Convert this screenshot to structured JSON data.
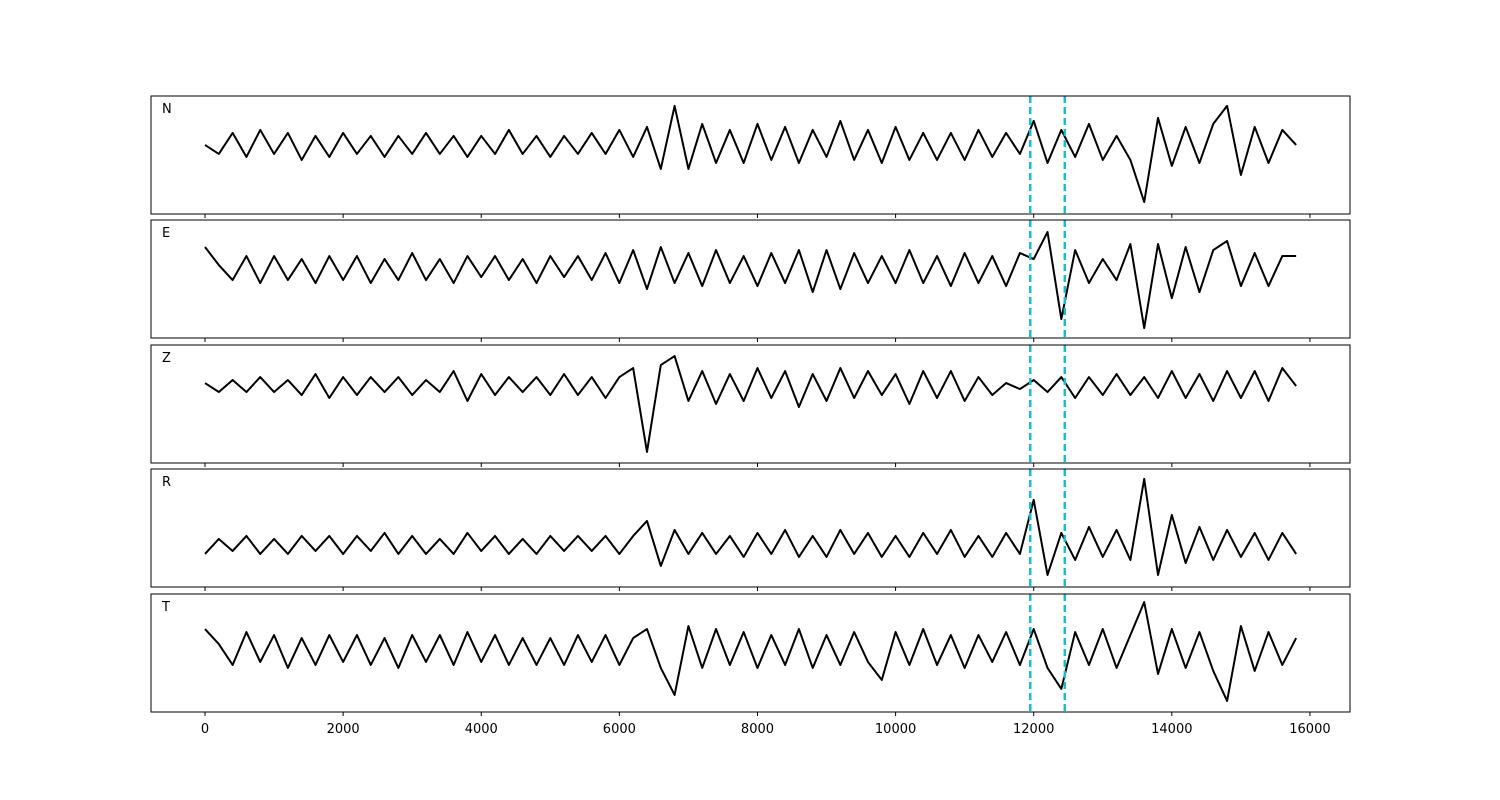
{
  "chart_data": {
    "type": "line",
    "x": [
      0,
      200,
      400,
      600,
      800,
      1000,
      1200,
      1400,
      1600,
      1800,
      2000,
      2200,
      2400,
      2600,
      2800,
      3000,
      3200,
      3400,
      3600,
      3800,
      4000,
      4200,
      4400,
      4600,
      4800,
      5000,
      5200,
      5400,
      5600,
      5800,
      6000,
      6200,
      6400,
      6600,
      6800,
      7000,
      7200,
      7400,
      7600,
      7800,
      8000,
      8200,
      8400,
      8600,
      8800,
      9000,
      9200,
      9400,
      9600,
      9800,
      10000,
      10200,
      10400,
      10600,
      10800,
      11000,
      11200,
      11400,
      11600,
      11800,
      12000,
      12200,
      12400,
      12600,
      12800,
      13000,
      13200,
      13400,
      13600,
      13800,
      14000,
      14200,
      14400,
      14600,
      14800,
      15000,
      15200,
      15400,
      15600,
      15800
    ],
    "xlim": [
      -782,
      16580
    ],
    "xticks": [
      0,
      2000,
      4000,
      6000,
      8000,
      10000,
      12000,
      14000,
      16000
    ],
    "vlines": [
      11950,
      12450
    ],
    "vline_color": "#17becf",
    "series": [
      {
        "name": "N",
        "color": "#000000",
        "ylim": [
          -2.3,
          1.63
        ],
        "values": [
          0,
          -0.3,
          0.4,
          -0.4,
          0.5,
          -0.3,
          0.4,
          -0.5,
          0.3,
          -0.4,
          0.4,
          -0.3,
          0.3,
          -0.4,
          0.3,
          -0.3,
          0.4,
          -0.3,
          0.3,
          -0.4,
          0.3,
          -0.3,
          0.5,
          -0.3,
          0.3,
          -0.4,
          0.3,
          -0.3,
          0.4,
          -0.3,
          0.5,
          -0.4,
          0.6,
          -0.8,
          1.3,
          -0.8,
          0.7,
          -0.6,
          0.5,
          -0.6,
          0.7,
          -0.5,
          0.6,
          -0.6,
          0.5,
          -0.4,
          0.8,
          -0.5,
          0.5,
          -0.6,
          0.6,
          -0.5,
          0.4,
          -0.5,
          0.4,
          -0.5,
          0.5,
          -0.4,
          0.4,
          -0.3,
          0.8,
          -0.6,
          0.5,
          -0.4,
          0.7,
          -0.5,
          0.3,
          -0.5,
          -1.9,
          0.9,
          -0.7,
          0.6,
          -0.6,
          0.7,
          1.3,
          -1.0,
          0.6,
          -0.6,
          0.5,
          0
        ]
      },
      {
        "name": "E",
        "color": "#000000",
        "ylim": [
          -2.33,
          1.6
        ],
        "values": [
          0.7,
          0.1,
          -0.4,
          0.4,
          -0.5,
          0.4,
          -0.4,
          0.3,
          -0.5,
          0.4,
          -0.4,
          0.4,
          -0.5,
          0.3,
          -0.4,
          0.5,
          -0.4,
          0.3,
          -0.5,
          0.4,
          -0.3,
          0.4,
          -0.4,
          0.3,
          -0.5,
          0.4,
          -0.3,
          0.4,
          -0.4,
          0.5,
          -0.5,
          0.6,
          -0.7,
          0.7,
          -0.5,
          0.5,
          -0.6,
          0.6,
          -0.5,
          0.4,
          -0.6,
          0.5,
          -0.5,
          0.6,
          -0.8,
          0.6,
          -0.7,
          0.5,
          -0.5,
          0.4,
          -0.5,
          0.6,
          -0.5,
          0.4,
          -0.6,
          0.5,
          -0.5,
          0.4,
          -0.6,
          0.5,
          0.3,
          1.2,
          -1.7,
          0.6,
          -0.5,
          0.3,
          -0.4,
          0.8,
          -2.0,
          0.8,
          -1.0,
          0.7,
          -0.8,
          0.6,
          0.9,
          -0.6,
          0.5,
          -0.6,
          0.4,
          0.4
        ]
      },
      {
        "name": "Z",
        "color": "#000000",
        "ylim": [
          -2.57,
          1.37
        ],
        "values": [
          0.1,
          -0.2,
          0.2,
          -0.2,
          0.3,
          -0.2,
          0.2,
          -0.3,
          0.4,
          -0.4,
          0.3,
          -0.3,
          0.3,
          -0.2,
          0.3,
          -0.3,
          0.2,
          -0.2,
          0.5,
          -0.5,
          0.4,
          -0.3,
          0.3,
          -0.2,
          0.3,
          -0.3,
          0.4,
          -0.3,
          0.3,
          -0.4,
          0.3,
          0.6,
          -2.2,
          0.7,
          1.0,
          -0.5,
          0.5,
          -0.6,
          0.4,
          -0.5,
          0.6,
          -0.4,
          0.5,
          -0.7,
          0.4,
          -0.5,
          0.6,
          -0.4,
          0.5,
          -0.3,
          0.4,
          -0.6,
          0.5,
          -0.4,
          0.5,
          -0.5,
          0.3,
          -0.3,
          0.1,
          -0.1,
          0.2,
          -0.2,
          0.3,
          -0.4,
          0.3,
          -0.3,
          0.4,
          -0.3,
          0.3,
          -0.4,
          0.5,
          -0.4,
          0.4,
          -0.5,
          0.5,
          -0.4,
          0.5,
          -0.5,
          0.6,
          0
        ]
      },
      {
        "name": "R",
        "color": "#000000",
        "ylim": [
          -1.4,
          2.53
        ],
        "values": [
          -0.3,
          0.2,
          -0.2,
          0.3,
          -0.3,
          0.2,
          -0.3,
          0.3,
          -0.2,
          0.3,
          -0.3,
          0.3,
          -0.2,
          0.4,
          -0.3,
          0.3,
          -0.3,
          0.2,
          -0.3,
          0.4,
          -0.2,
          0.3,
          -0.3,
          0.2,
          -0.3,
          0.3,
          -0.2,
          0.3,
          -0.2,
          0.3,
          -0.3,
          0.3,
          0.8,
          -0.7,
          0.5,
          -0.3,
          0.4,
          -0.3,
          0.3,
          -0.4,
          0.4,
          -0.3,
          0.5,
          -0.4,
          0.3,
          -0.4,
          0.5,
          -0.3,
          0.4,
          -0.4,
          0.3,
          -0.4,
          0.4,
          -0.3,
          0.5,
          -0.4,
          0.3,
          -0.4,
          0.4,
          -0.3,
          1.5,
          -1.0,
          0.4,
          -0.5,
          0.6,
          -0.4,
          0.5,
          -0.5,
          2.2,
          -1.0,
          1.0,
          -0.6,
          0.6,
          -0.5,
          0.5,
          -0.4,
          0.4,
          -0.5,
          0.4,
          -0.3
        ]
      },
      {
        "name": "T",
        "color": "#000000",
        "ylim": [
          -2.07,
          1.87
        ],
        "values": [
          0.7,
          0.2,
          -0.5,
          0.6,
          -0.4,
          0.5,
          -0.6,
          0.4,
          -0.5,
          0.5,
          -0.4,
          0.5,
          -0.5,
          0.4,
          -0.6,
          0.5,
          -0.4,
          0.5,
          -0.5,
          0.6,
          -0.4,
          0.5,
          -0.5,
          0.4,
          -0.5,
          0.4,
          -0.5,
          0.5,
          -0.4,
          0.5,
          -0.5,
          0.4,
          0.7,
          -0.6,
          -1.5,
          0.8,
          -0.6,
          0.7,
          -0.5,
          0.6,
          -0.6,
          0.5,
          -0.5,
          0.7,
          -0.6,
          0.5,
          -0.5,
          0.6,
          -0.4,
          -1.0,
          0.6,
          -0.5,
          0.7,
          -0.5,
          0.5,
          -0.6,
          0.5,
          -0.4,
          0.6,
          -0.5,
          0.7,
          -0.6,
          -1.3,
          0.6,
          -0.5,
          0.7,
          -0.6,
          0.5,
          1.6,
          -0.8,
          0.7,
          -0.6,
          0.6,
          -0.7,
          -1.7,
          0.8,
          -0.7,
          0.6,
          -0.5,
          0.4
        ]
      }
    ]
  }
}
